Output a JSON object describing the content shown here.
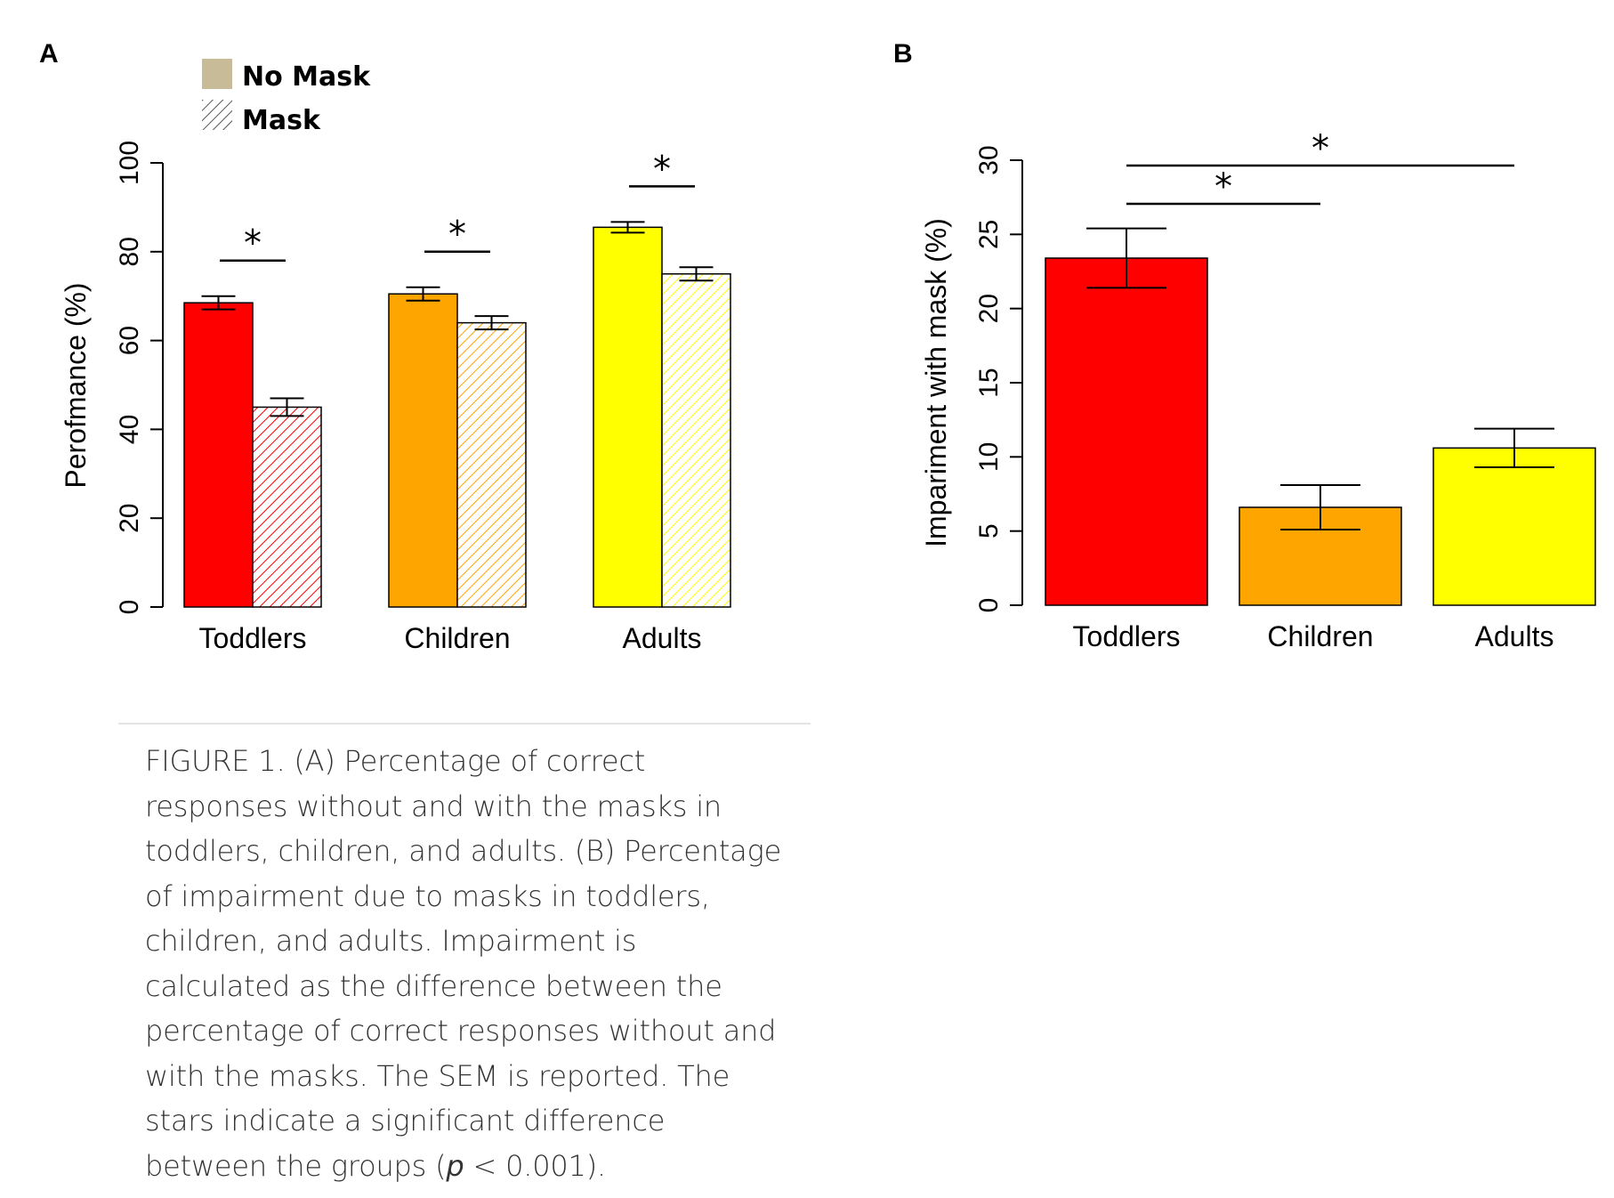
{
  "panel_a_letter": "A",
  "panel_b_letter": "B",
  "legend": {
    "no_mask_label": "No Mask",
    "mask_label": "Mask",
    "no_mask_color": "#c7bc97"
  },
  "caption": {
    "prefix": "FIGURE 1. (A) Percentage of correct responses without and with the masks in toddlers, children, and adults. (B) Percentage of impairment due to masks in toddlers, children, and adults. Impairment is calculated as the difference between the percentage of correct responses without and with the masks. The SEM is reported. The stars indicate a significant difference between the groups (",
    "p_symbol": "p",
    "suffix": " < 0.001)."
  },
  "chart_data": [
    {
      "type": "bar",
      "panel": "A",
      "ylabel": "Perofmance (%)",
      "ylim": [
        0,
        100
      ],
      "yticks": [
        0,
        20,
        40,
        60,
        80,
        100
      ],
      "categories": [
        "Toddlers",
        "Children",
        "Adults"
      ],
      "colors": [
        "#ff0000",
        "#ffa500",
        "#ffff00"
      ],
      "series": [
        {
          "name": "No Mask",
          "pattern": "solid",
          "values": [
            68.5,
            70.5,
            85.5
          ],
          "sem": [
            1.5,
            1.5,
            1.2
          ]
        },
        {
          "name": "Mask",
          "pattern": "hatched",
          "values": [
            45,
            64,
            75
          ],
          "sem": [
            2.0,
            1.5,
            1.5
          ]
        }
      ],
      "significance": [
        "*",
        "*",
        "*"
      ]
    },
    {
      "type": "bar",
      "panel": "B",
      "ylabel": "Impariment with mask (%)",
      "ylim": [
        0,
        30
      ],
      "yticks": [
        0,
        5,
        10,
        15,
        20,
        25,
        30
      ],
      "categories": [
        "Toddlers",
        "Children",
        "Adults"
      ],
      "colors": [
        "#ff0000",
        "#ffa500",
        "#ffff00"
      ],
      "values": [
        23.4,
        6.6,
        10.6
      ],
      "sem": [
        2.0,
        1.5,
        1.3
      ],
      "significance": [
        {
          "from": "Toddlers",
          "to": "Children",
          "label": "*"
        },
        {
          "from": "Toddlers",
          "to": "Adults",
          "label": "*"
        }
      ]
    }
  ]
}
